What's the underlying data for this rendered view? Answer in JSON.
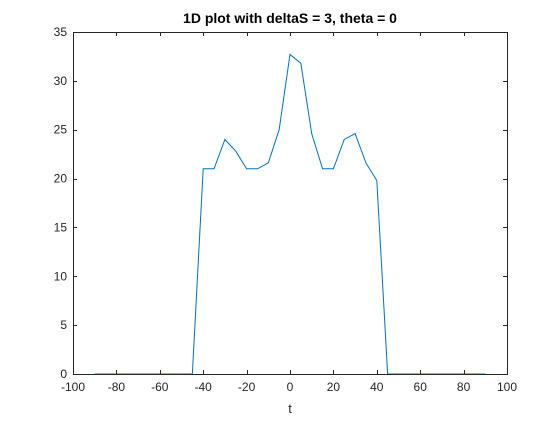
{
  "chart_data": {
    "type": "line",
    "title": "1D plot with deltaS = 3, theta = 0",
    "xlabel": "t",
    "ylabel": "",
    "xlim": [
      -100,
      100
    ],
    "ylim": [
      0,
      35
    ],
    "xticks": [
      -100,
      -80,
      -60,
      -40,
      -20,
      0,
      20,
      40,
      60,
      80,
      100
    ],
    "yticks": [
      0,
      5,
      10,
      15,
      20,
      25,
      30,
      35
    ],
    "grid": false,
    "series": [
      {
        "color": "#0072BD",
        "x": [
          -90,
          -85,
          -80,
          -75,
          -70,
          -65,
          -60,
          -55,
          -50,
          -45,
          -40,
          -35,
          -30,
          -25,
          -20,
          -15,
          -10,
          -5,
          0,
          5,
          10,
          15,
          20,
          25,
          30,
          35,
          40,
          45,
          50,
          55,
          60,
          65,
          70,
          75,
          80,
          85,
          90
        ],
        "y": [
          0,
          0,
          0,
          0,
          0,
          0,
          0,
          0,
          0,
          0,
          21.0,
          21.0,
          24.0,
          22.8,
          21.0,
          21.0,
          21.6,
          25.0,
          32.7,
          31.8,
          24.6,
          21.0,
          21.0,
          24.0,
          24.6,
          21.6,
          19.8,
          0,
          0,
          0,
          0,
          0,
          0,
          0,
          0,
          0,
          0
        ]
      }
    ]
  }
}
